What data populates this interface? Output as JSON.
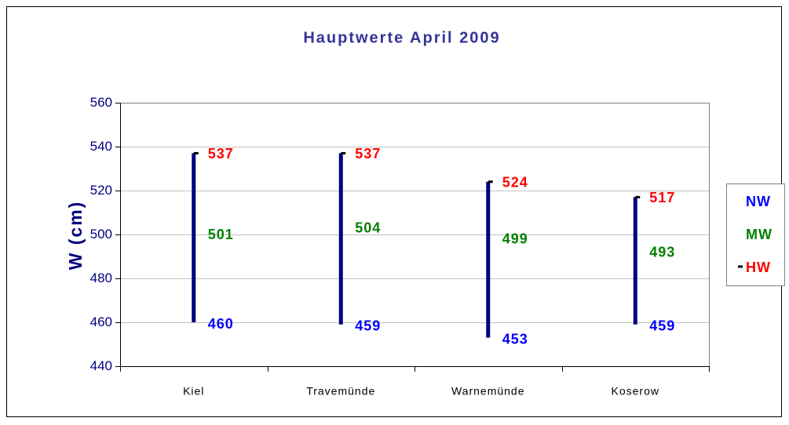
{
  "chart_data": {
    "type": "hilo",
    "title": "Hauptwerte April 2009",
    "y_label": "W (cm)",
    "categories": [
      "Kiel",
      "Travemünde",
      "Warnemünde",
      "Koserow"
    ],
    "series": [
      {
        "name": "NW",
        "color": "#0000ff",
        "values": [
          460,
          459,
          453,
          459
        ]
      },
      {
        "name": "MW",
        "color": "#008000",
        "values": [
          501,
          504,
          499,
          493
        ]
      },
      {
        "name": "HW",
        "color": "#ff0000",
        "values": [
          537,
          537,
          524,
          517
        ]
      }
    ],
    "line_color": "#000080",
    "marker_color": "#000000",
    "ylim": [
      440,
      560
    ],
    "yticks": [
      440,
      460,
      480,
      500,
      520,
      540,
      560
    ],
    "grid": true,
    "legend": "right"
  }
}
